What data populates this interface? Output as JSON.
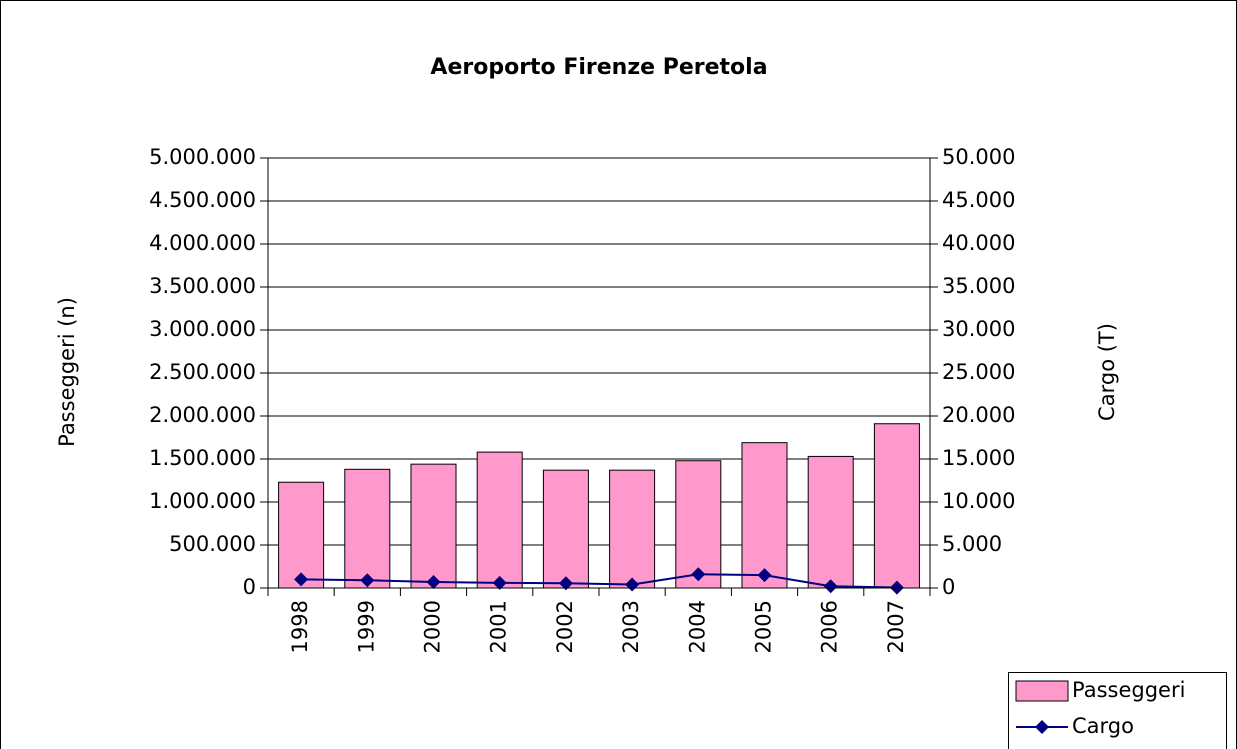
{
  "chart_data": {
    "type": "bar",
    "title": "Aeroporto Firenze Peretola",
    "ylabel": "Passeggeri (n)",
    "y2label": "Cargo (T)",
    "categories": [
      "1998",
      "1999",
      "2000",
      "2001",
      "2002",
      "2003",
      "2004",
      "2005",
      "2006",
      "2007"
    ],
    "series": [
      {
        "name": "Passeggeri",
        "type": "bar",
        "color": "#ff99cc",
        "values": [
          1230000,
          1380000,
          1440000,
          1580000,
          1370000,
          1370000,
          1480000,
          1690000,
          1530000,
          1910000
        ]
      },
      {
        "name": "Cargo",
        "type": "line",
        "axis": "y2",
        "color": "#000080",
        "values": [
          1000,
          900,
          700,
          600,
          550,
          400,
          1600,
          1500,
          200,
          50
        ]
      }
    ],
    "ylim": [
      0,
      5000000
    ],
    "yticks": [
      0,
      {
        "value": 500000,
        "label": "500.000"
      },
      {
        "value": 1000000,
        "label": "1.000.000"
      },
      {
        "value": 1500000,
        "label": "1.500.000"
      },
      {
        "value": 2000000,
        "label": "2.000.000"
      },
      {
        "value": 2500000,
        "label": "2.500.000"
      },
      {
        "value": 3000000,
        "label": "3.000.000"
      },
      {
        "value": 3500000,
        "label": "3.500.000"
      },
      {
        "value": 4000000,
        "label": "4.000.000"
      },
      {
        "value": 4500000,
        "label": "4.500.000"
      },
      {
        "value": 5000000,
        "label": "5.000.000"
      }
    ],
    "y2lim": [
      0,
      50000
    ],
    "y2ticks": [
      0,
      {
        "value": 5000,
        "label": "5.000"
      },
      {
        "value": 10000,
        "label": "10.000"
      },
      {
        "value": 15000,
        "label": "15.000"
      },
      {
        "value": 20000,
        "label": "20.000"
      },
      {
        "value": 25000,
        "label": "25.000"
      },
      {
        "value": 30000,
        "label": "30.000"
      },
      {
        "value": 35000,
        "label": "35.000"
      },
      {
        "value": 40000,
        "label": "40.000"
      },
      {
        "value": 45000,
        "label": "45.000"
      },
      {
        "value": 50000,
        "label": "50.000"
      }
    ],
    "grid": true,
    "legend": "bottom-right"
  }
}
